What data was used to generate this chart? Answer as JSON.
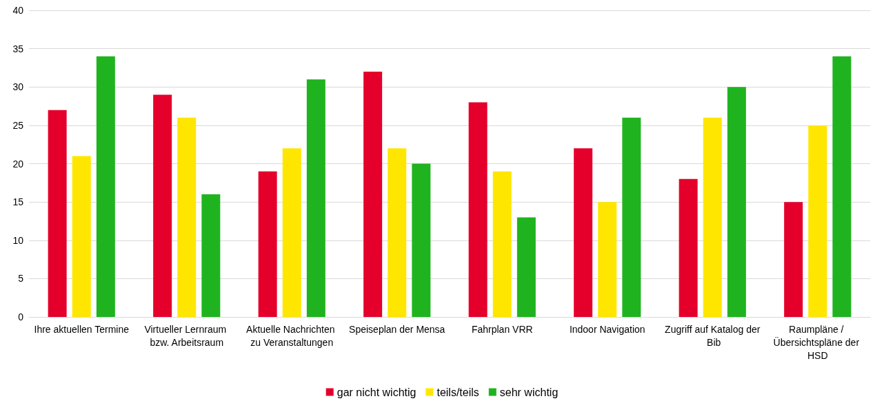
{
  "chart_data": {
    "type": "bar",
    "categories": [
      "Ihre aktuellen Termine",
      "Virtueller Lernraum bzw. Arbeitsraum",
      "Aktuelle Nachrichten zu Veranstaltungen",
      "Speiseplan der Mensa",
      "Fahrplan VRR",
      "Indoor Navigation",
      "Zugriff auf Katalog der Bib",
      "Raumpläne / Übersichtspläne der HSD"
    ],
    "series": [
      {
        "name": "gar nicht wichtig",
        "color": "#e4002b",
        "values": [
          27,
          29,
          19,
          32,
          28,
          22,
          18,
          15
        ]
      },
      {
        "name": "teils/teils",
        "color": "#ffe600",
        "values": [
          21,
          26,
          22,
          22,
          19,
          15,
          26,
          25
        ]
      },
      {
        "name": "sehr wichtig",
        "color": "#1fb41f",
        "values": [
          34,
          16,
          31,
          20,
          13,
          26,
          30,
          34
        ]
      }
    ],
    "ylim": [
      0,
      40
    ],
    "yticks": [
      0,
      5,
      10,
      15,
      20,
      25,
      30,
      35,
      40
    ],
    "grid": "y",
    "legend": "bottom"
  }
}
